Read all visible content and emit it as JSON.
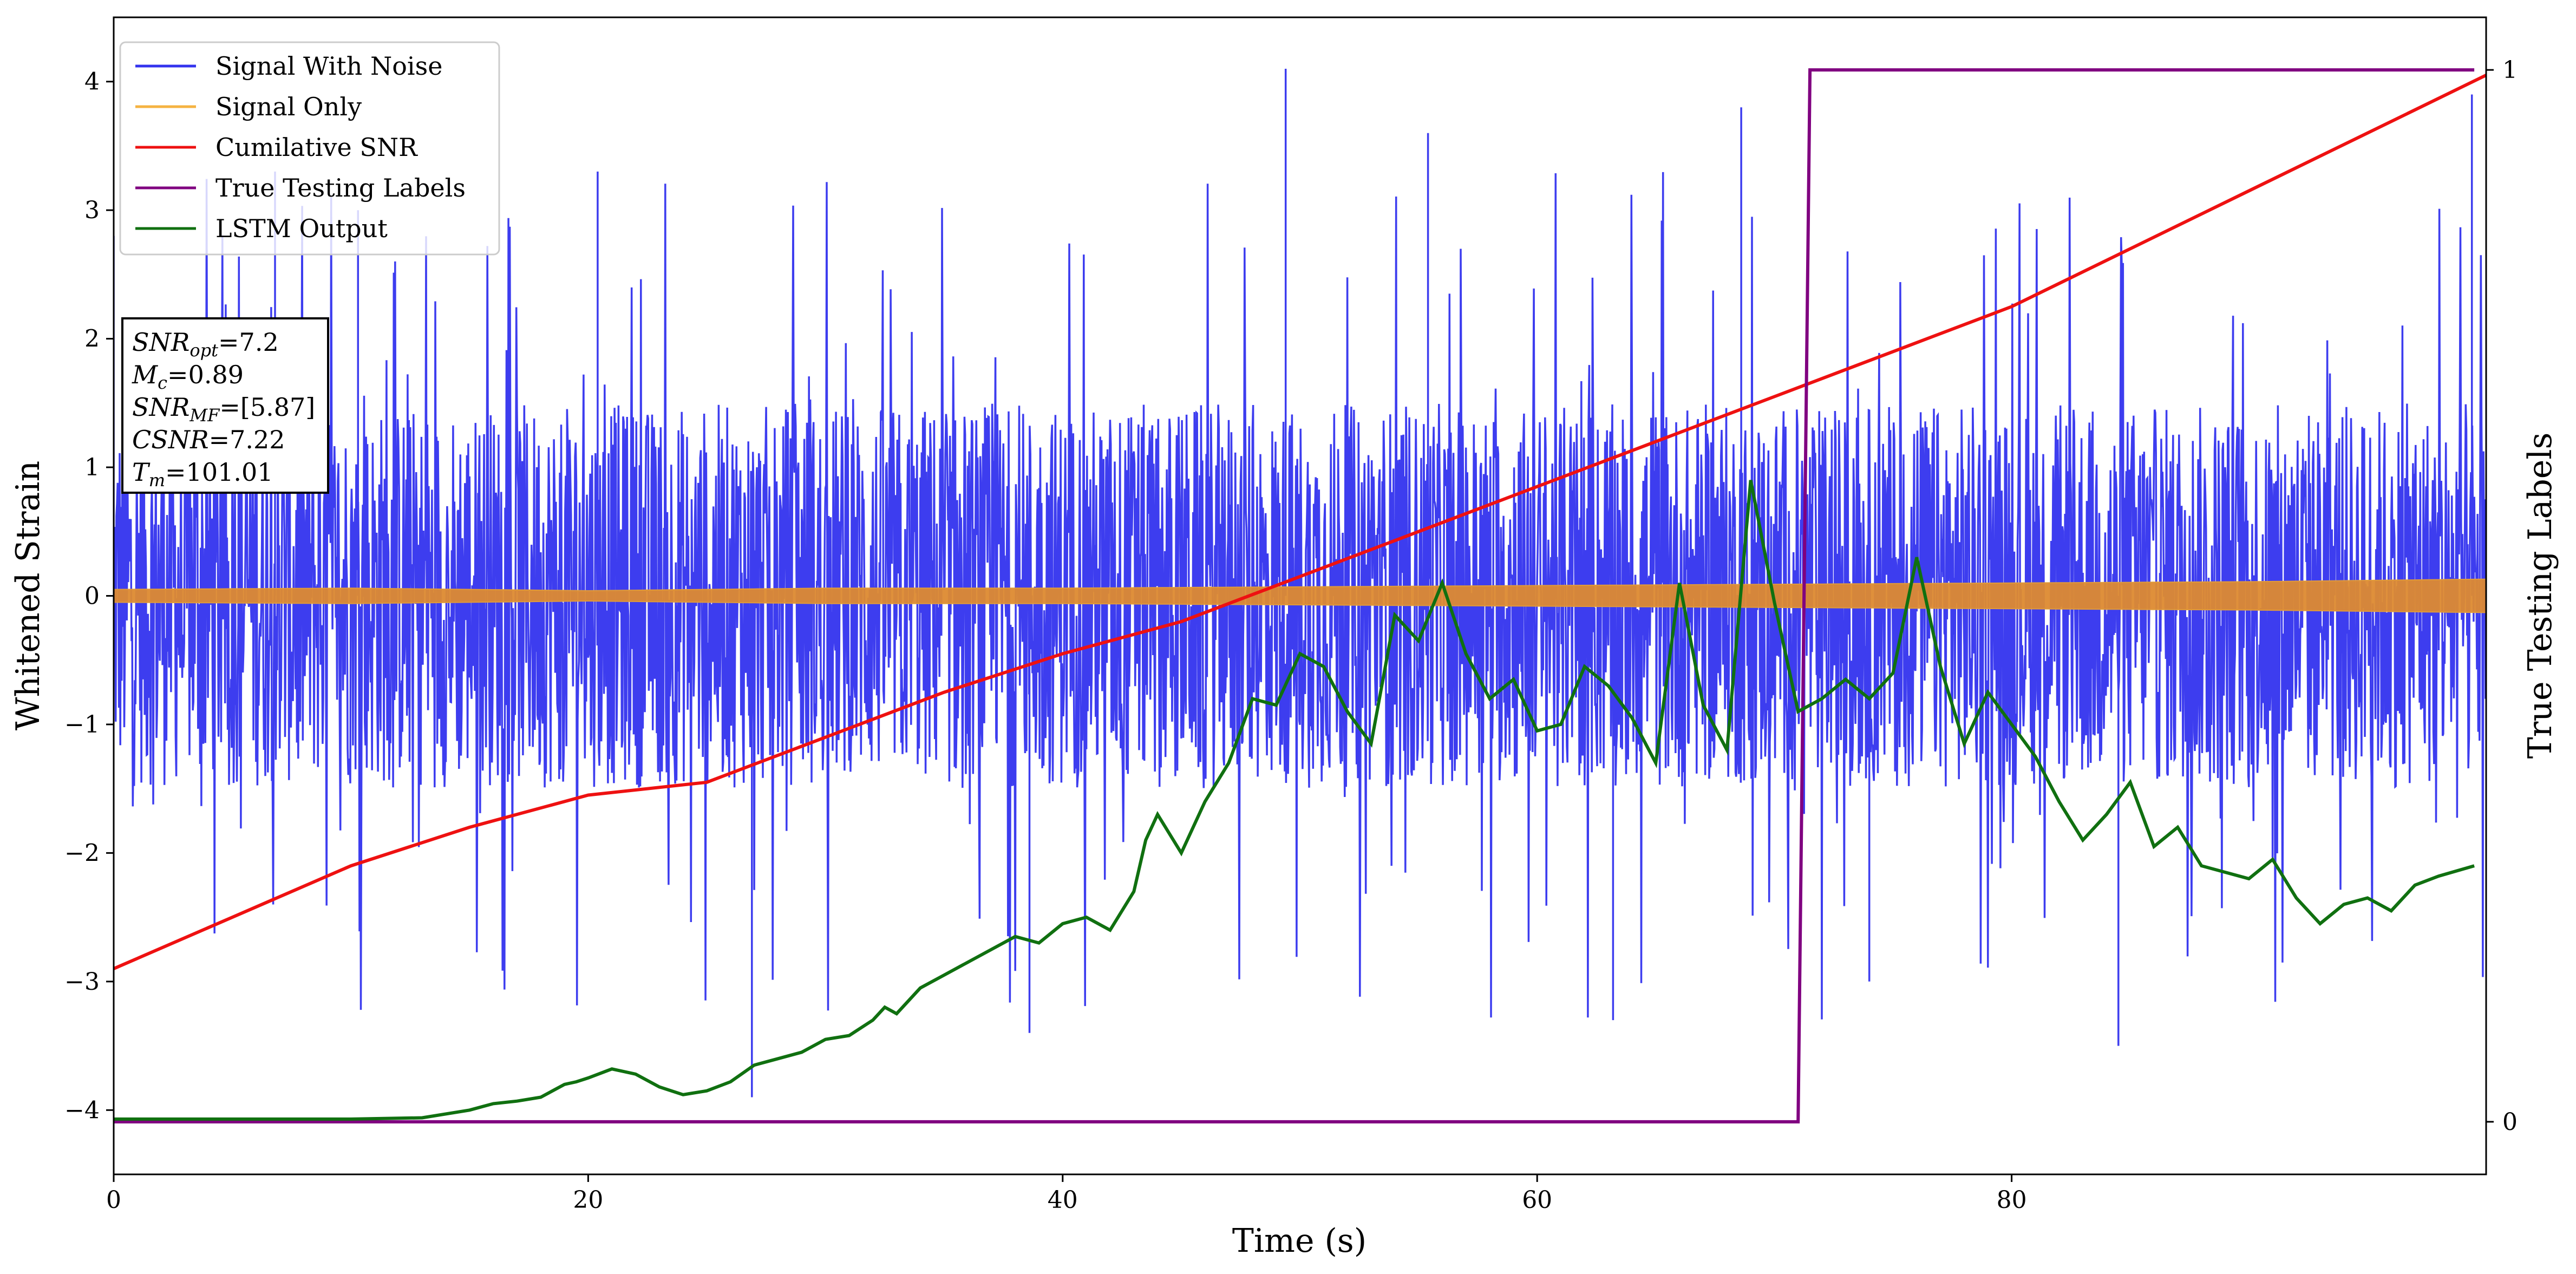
{
  "chart_data": {
    "type": "line",
    "title": "",
    "xlabel": "Time (s)",
    "ylabel": "Whitened Strain",
    "y2label": "True Testing Labels",
    "xlim": [
      0,
      100
    ],
    "ylim": [
      -4.5,
      4.5
    ],
    "y2lim": [
      -0.05,
      1.05
    ],
    "xticks": [
      "0",
      "20",
      "40",
      "60",
      "80"
    ],
    "xtick_values": [
      0,
      20,
      40,
      60,
      80
    ],
    "yticks": [
      "4",
      "3",
      "2",
      "1",
      "0",
      "−1",
      "−2",
      "−3",
      "−4"
    ],
    "ytick_values": [
      4,
      3,
      2,
      1,
      0,
      -1,
      -2,
      -3,
      -4
    ],
    "y2ticks": [
      "1",
      "0"
    ],
    "y2tick_values": [
      1,
      0
    ],
    "grid": false,
    "legend_position": "top-left",
    "legend": [
      "Signal With Noise",
      "Signal Only",
      "Cumilative SNR",
      "True Testing Labels",
      "LSTM Output"
    ],
    "info_box": {
      "lines": [
        {
          "base": "SNR",
          "sub": "opt",
          "rest": "=7.2"
        },
        {
          "base": "M",
          "sub": "c",
          "rest": "=0.89"
        },
        {
          "base": "SNR",
          "sub": "MF",
          "rest": "=[5.87]"
        },
        {
          "base": "CSNR",
          "sub": "",
          "rest": "=7.22"
        },
        {
          "base": "T",
          "sub": "m",
          "rest": "=101.01"
        }
      ]
    },
    "series": [
      {
        "name": "Signal With Noise",
        "color": "#3333ee",
        "description_values": {
          "amplitude_typical": 1.3,
          "max": 4.1,
          "min": -3.9
        },
        "x_sampled": [
          0,
          6.8,
          10.3,
          20.4,
          26.9,
          38.6,
          49.4,
          55.4,
          63.2,
          68.6,
          74.0,
          84.5,
          99.4
        ],
        "y_extremes_sampled": [
          2.8,
          3.3,
          3.0,
          3.3,
          -3.9,
          -3.4,
          4.1,
          3.6,
          -3.3,
          3.8,
          -3.0,
          -3.5,
          3.9
        ]
      },
      {
        "name": "Signal Only",
        "color": "#f5b342",
        "envelope_x": [
          0,
          10,
          20,
          30,
          40,
          50,
          60,
          70,
          80,
          90,
          100
        ],
        "envelope_y": [
          0.05,
          0.06,
          0.04,
          0.06,
          0.06,
          0.07,
          0.08,
          0.09,
          0.1,
          0.11,
          0.13
        ]
      },
      {
        "name": "Cumilative SNR",
        "color": "#ee1111",
        "x": [
          0,
          5,
          10,
          15,
          20,
          25,
          30,
          35,
          40,
          45,
          50,
          55,
          60,
          65,
          70,
          75,
          80,
          85,
          90,
          95,
          100
        ],
        "y": [
          -2.9,
          -2.5,
          -2.1,
          -1.8,
          -1.55,
          -1.45,
          -1.1,
          -0.75,
          -0.45,
          -0.2,
          0.15,
          0.5,
          0.85,
          1.2,
          1.55,
          1.9,
          2.25,
          2.7,
          3.15,
          3.6,
          4.05
        ]
      },
      {
        "name": "True Testing Labels",
        "color": "#800080",
        "axis": "right",
        "x": [
          0,
          71.0,
          71.5,
          99.5
        ],
        "y": [
          0,
          0,
          1,
          1
        ]
      },
      {
        "name": "LSTM Output",
        "color": "#107010",
        "x": [
          0,
          5,
          10,
          13,
          15,
          16,
          17,
          18,
          19,
          19.5,
          20,
          21,
          22,
          23,
          24,
          25,
          26,
          27,
          28,
          29,
          30,
          31,
          32,
          32.5,
          33,
          34,
          35,
          36,
          37,
          38,
          39,
          40,
          41,
          42,
          43,
          43.5,
          44,
          45,
          46,
          47,
          48,
          49,
          50,
          51,
          52,
          53,
          54,
          55,
          56,
          57,
          58,
          59,
          60,
          61,
          62,
          63,
          64,
          65,
          66,
          67,
          68,
          69,
          70,
          71,
          72,
          73,
          74,
          75,
          76,
          77,
          78,
          79,
          80,
          81,
          82,
          83,
          84,
          85,
          86,
          87,
          88,
          89,
          90,
          91,
          92,
          93,
          94,
          95,
          96,
          97,
          98,
          99.5
        ],
        "y": [
          -4.07,
          -4.07,
          -4.07,
          -4.06,
          -4.0,
          -3.95,
          -3.93,
          -3.9,
          -3.8,
          -3.78,
          -3.75,
          -3.68,
          -3.72,
          -3.82,
          -3.88,
          -3.85,
          -3.78,
          -3.65,
          -3.6,
          -3.55,
          -3.45,
          -3.42,
          -3.3,
          -3.2,
          -3.25,
          -3.05,
          -2.95,
          -2.85,
          -2.75,
          -2.65,
          -2.7,
          -2.55,
          -2.5,
          -2.6,
          -2.3,
          -1.9,
          -1.7,
          -2.0,
          -1.6,
          -1.3,
          -0.8,
          -0.85,
          -0.45,
          -0.55,
          -0.9,
          -1.15,
          -0.15,
          -0.35,
          0.1,
          -0.45,
          -0.8,
          -0.65,
          -1.05,
          -1.0,
          -0.55,
          -0.7,
          -0.95,
          -1.3,
          0.1,
          -0.85,
          -1.2,
          0.9,
          -0.05,
          -0.9,
          -0.8,
          -0.65,
          -0.8,
          -0.6,
          0.3,
          -0.55,
          -1.15,
          -0.75,
          -1.0,
          -1.25,
          -1.6,
          -1.9,
          -1.7,
          -1.45,
          -1.95,
          -1.8,
          -2.1,
          -2.15,
          -2.2,
          -2.05,
          -2.35,
          -2.55,
          -2.4,
          -2.35,
          -2.45,
          -2.25,
          -2.18,
          -2.1
        ]
      }
    ]
  }
}
